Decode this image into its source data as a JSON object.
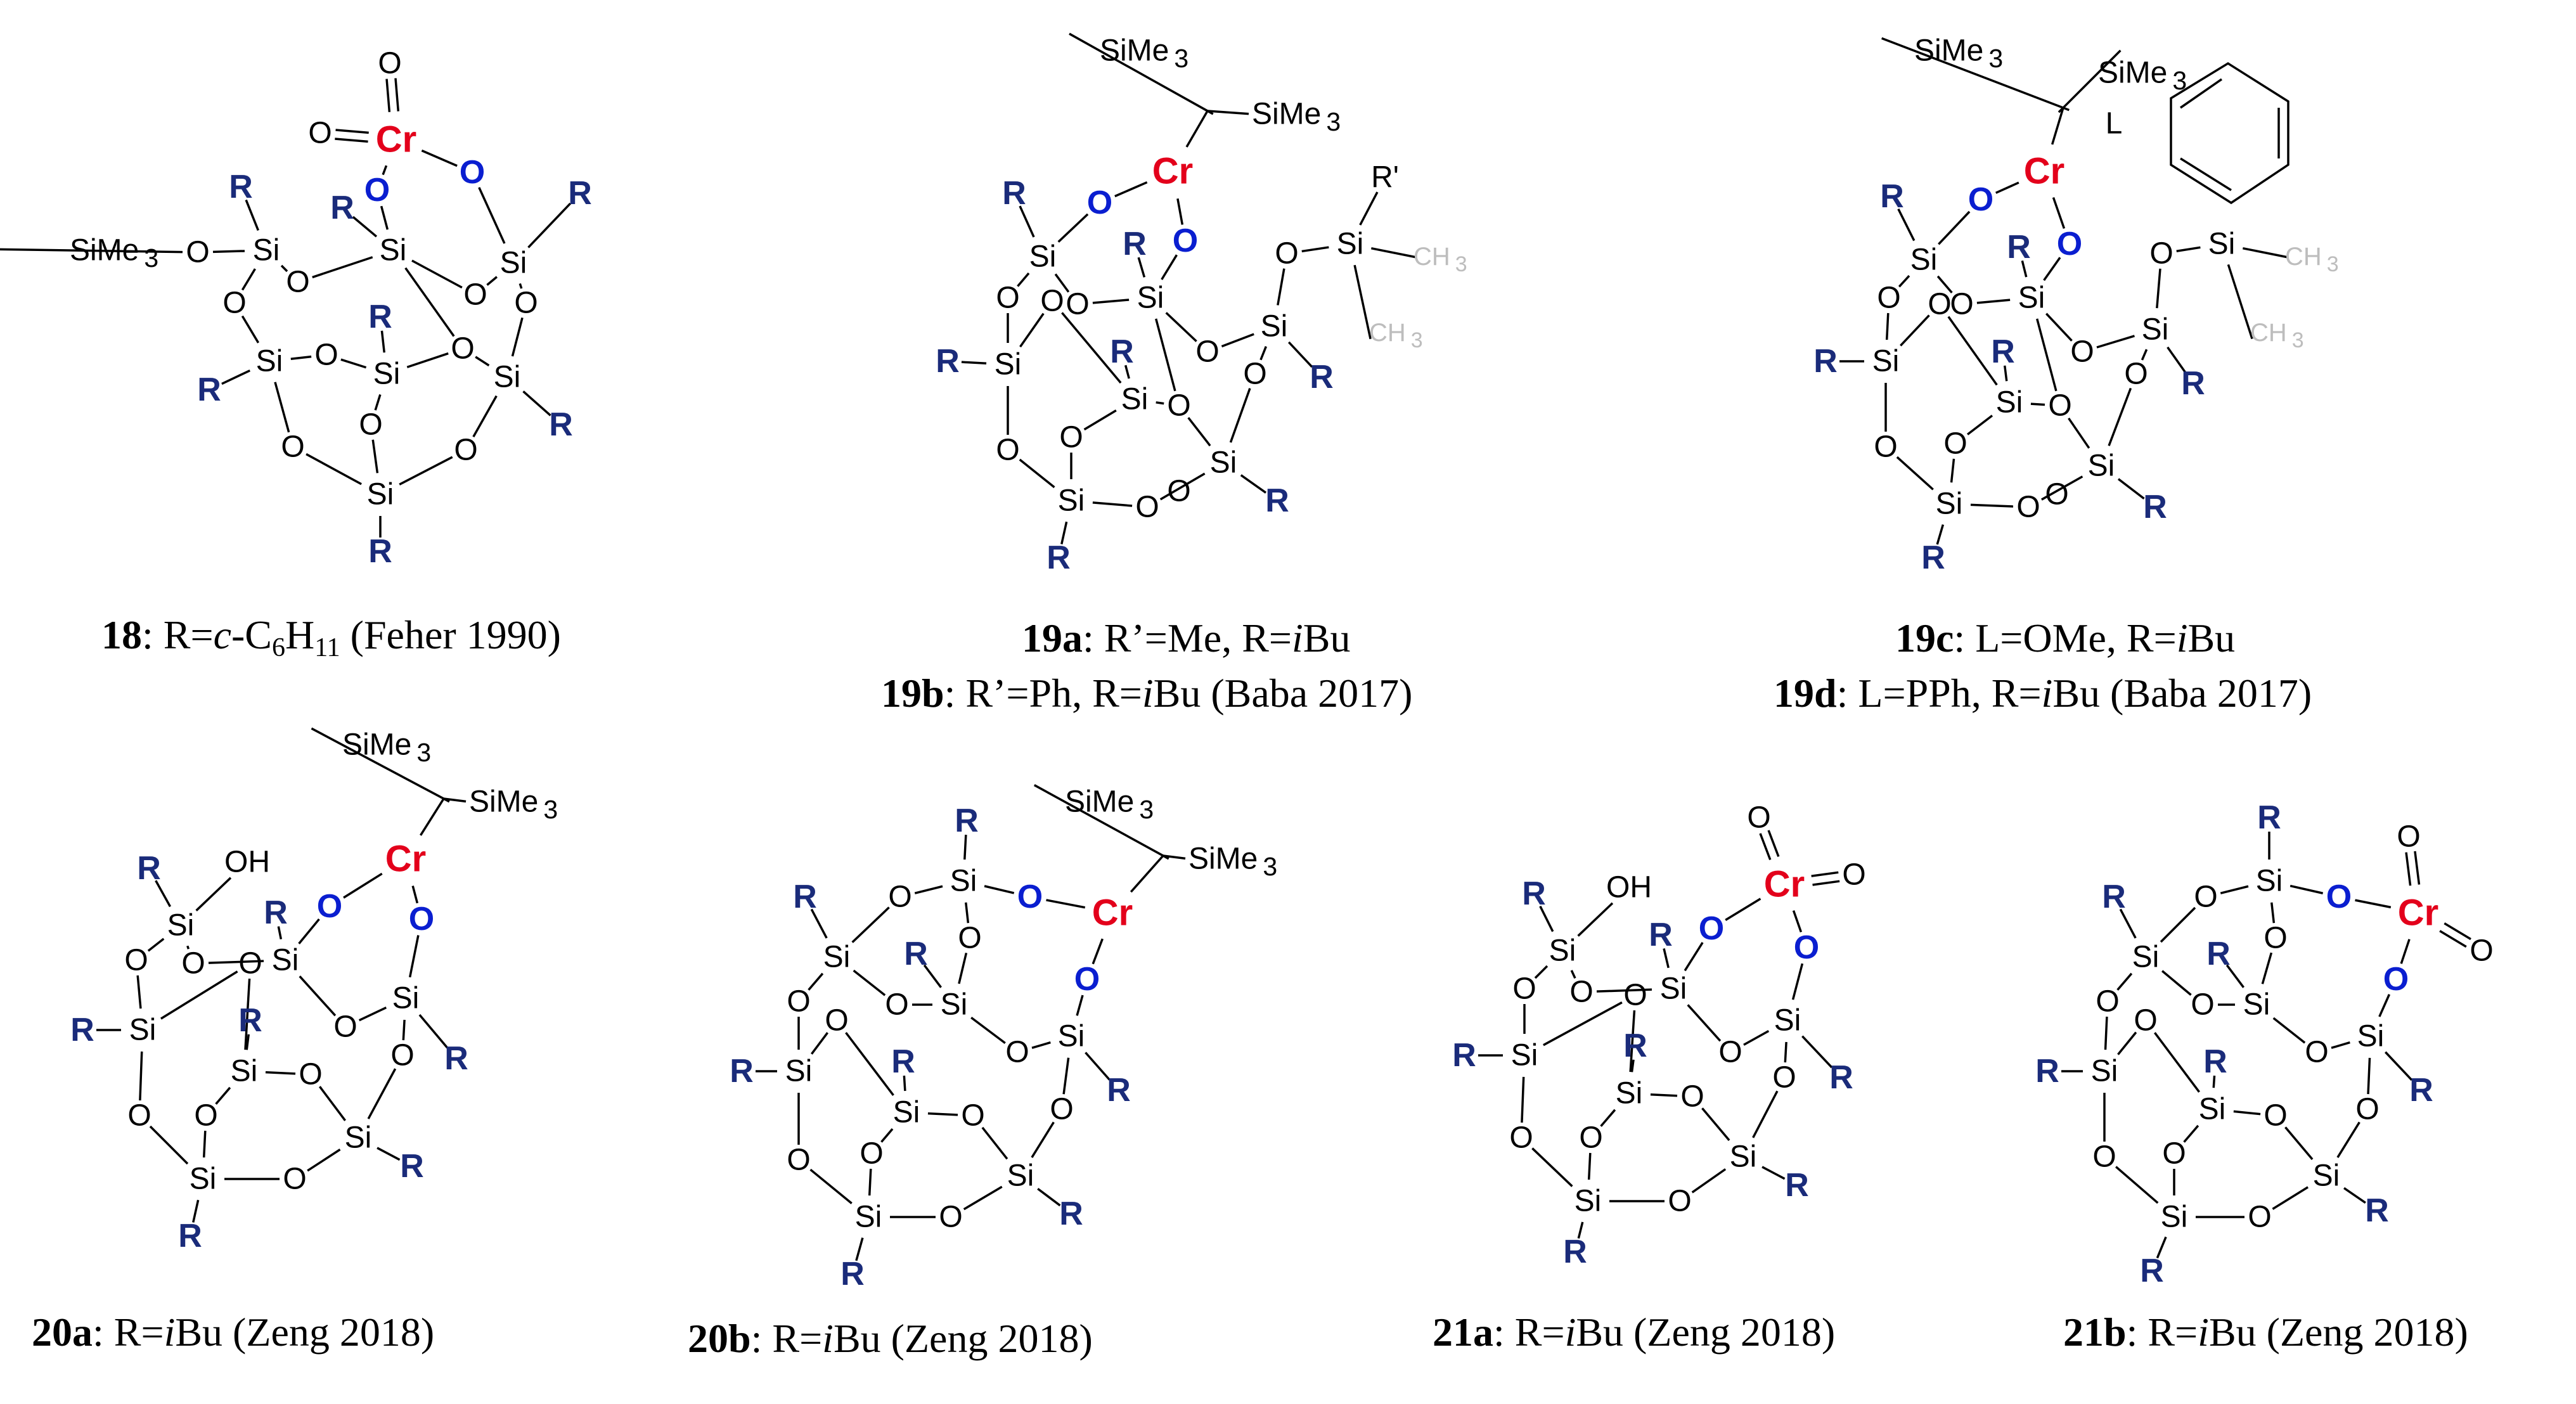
{
  "atoms": {
    "cr": "Cr",
    "o": "O",
    "si": "Si",
    "r": "R",
    "r_prime": "R'",
    "l": "L",
    "oh": "OH",
    "ch3": "CH",
    "ch3_sub": "3",
    "sime3": "SiMe",
    "sime3_sub": "3"
  },
  "colors": {
    "cr": "#e3001b",
    "o_cr": "#0a1ed0",
    "r": "#1a2b7a",
    "bond": "#000000",
    "text": "#000000",
    "faded": "#bdbdbd"
  },
  "captions": {
    "c18": {
      "id": "18",
      "sep": ":",
      "rest": " R=",
      "italic": "c",
      "rest2": "-C",
      "sub1": "6",
      "rest3": "H",
      "sub2": "11",
      "rest4": " (Feher 1990)"
    },
    "c19a": {
      "id": "19a",
      "sep": ":",
      "rest": " R’=Me, R=",
      "italic": "i",
      "rest2": "Bu"
    },
    "c19b": {
      "id": "19b",
      "sep": ":",
      "rest": " R’=Ph, R=",
      "italic": "i",
      "rest2": "Bu (Baba 2017)"
    },
    "c19c": {
      "id": "19c",
      "sep": ":",
      "rest": " L=OMe, R=",
      "italic": "i",
      "rest2": "Bu"
    },
    "c19d": {
      "id": "19d",
      "sep": ":",
      "rest": " L=PPh, R=",
      "italic": "i",
      "rest2": "Bu (Baba 2017)"
    },
    "c20a": {
      "id": "20a",
      "sep": ":",
      "rest": " R=",
      "italic": "i",
      "rest2": "Bu (Zeng 2018)"
    },
    "c20b": {
      "id": "20b",
      "sep": ":",
      "rest": " R=",
      "italic": "i",
      "rest2": "Bu (Zeng 2018)"
    },
    "c21a": {
      "id": "21a",
      "sep": ":",
      "rest": " R=",
      "italic": "i",
      "rest2": "Bu (Zeng 2018)"
    },
    "c21b": {
      "id": "21b",
      "sep": ":",
      "rest": " R=",
      "italic": "i",
      "rest2": "Bu (Zeng 2018)"
    }
  }
}
